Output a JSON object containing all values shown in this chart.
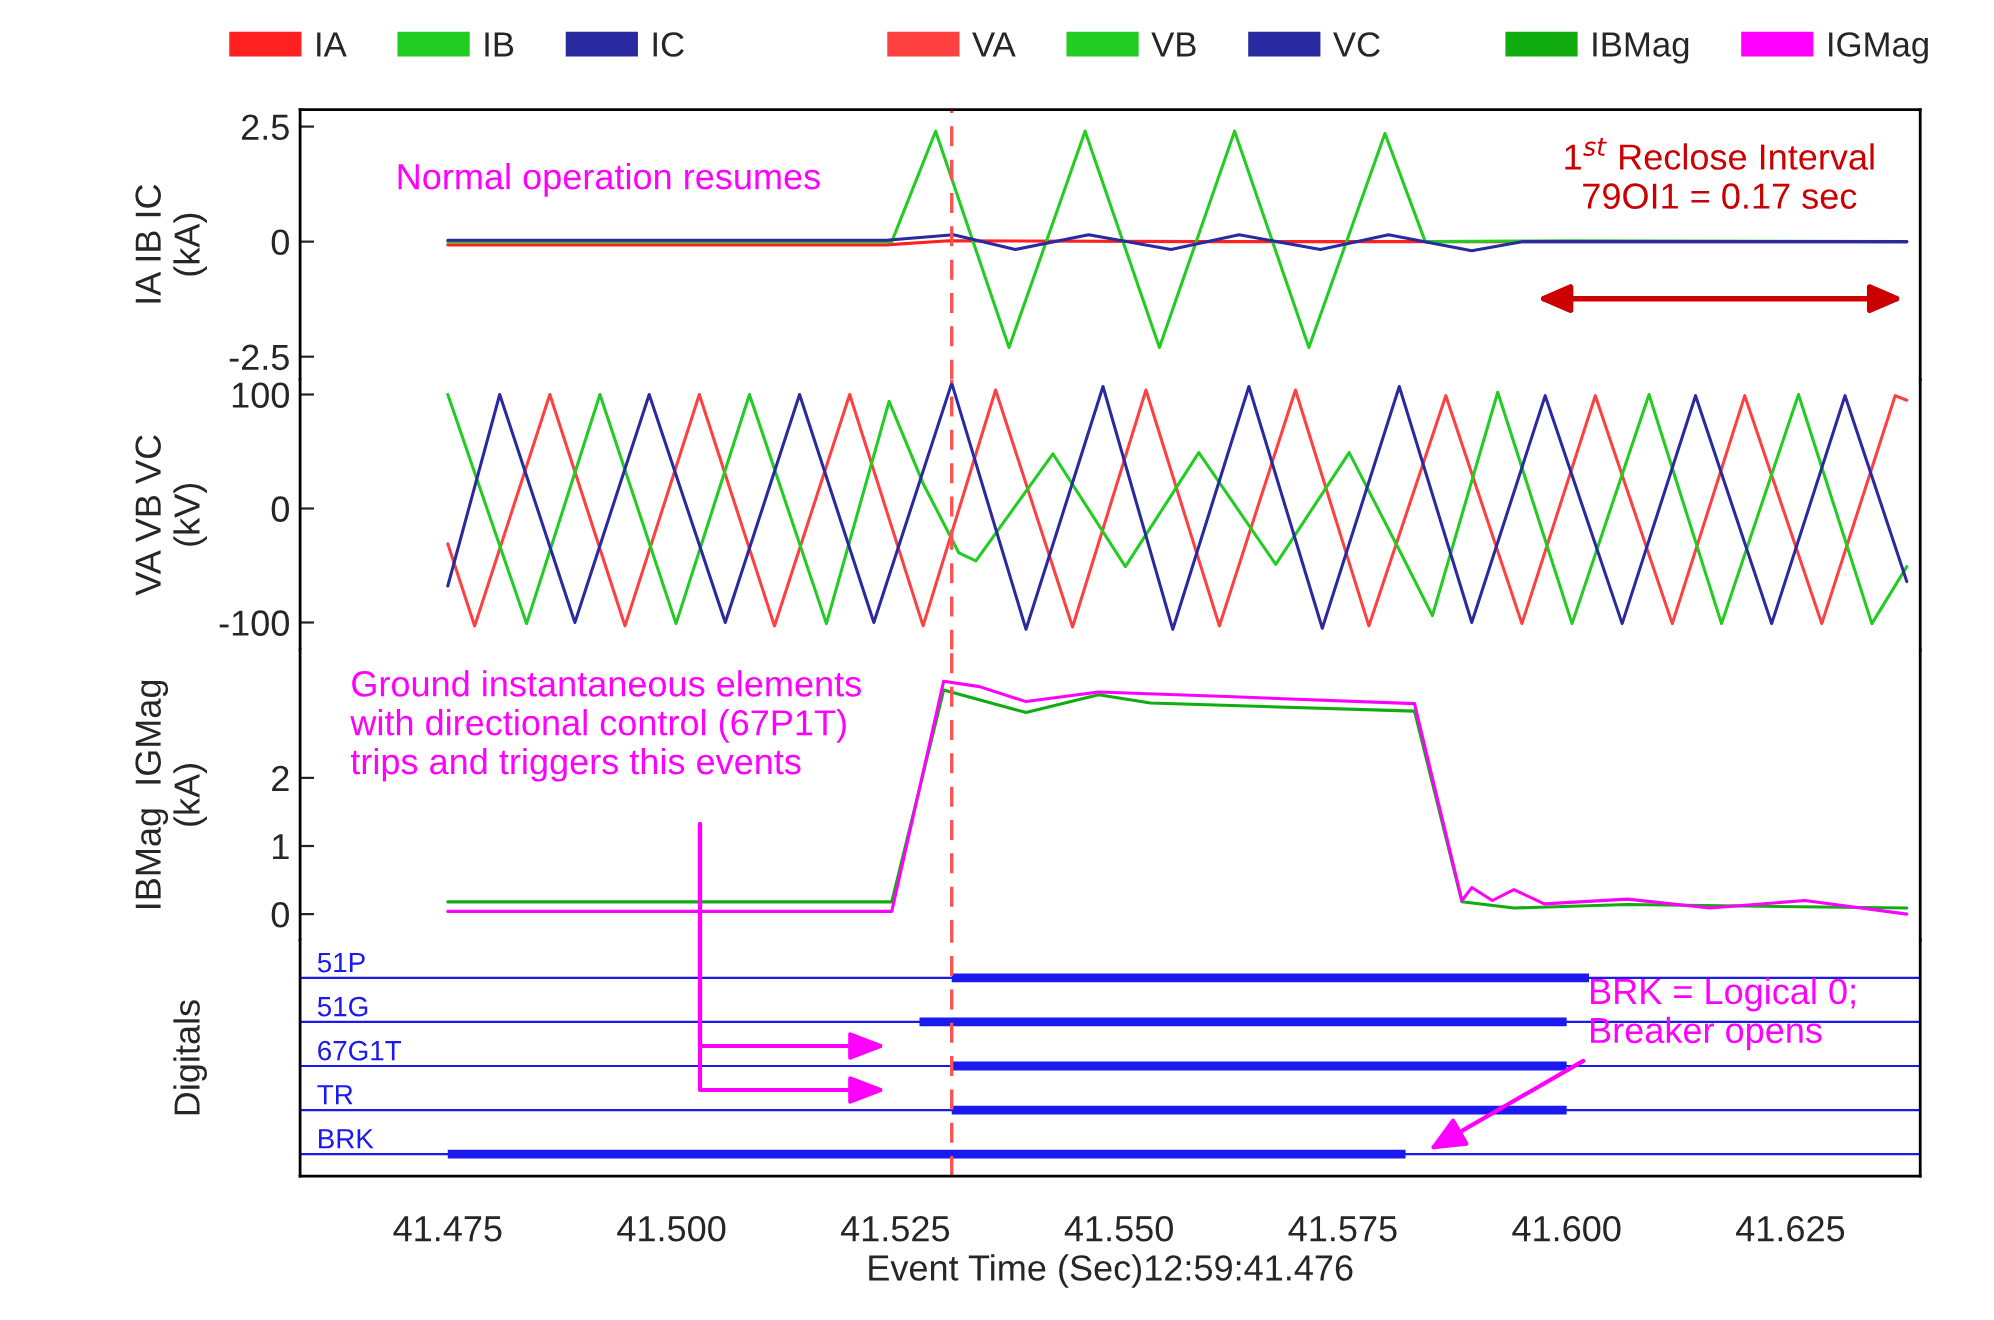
{
  "chart_data": [
    {
      "type": "line",
      "ylabel": "IA IB IC\n(kA)",
      "legend": "top",
      "tick_labels": "y",
      "xlim": [
        41.4585,
        41.6395
      ],
      "ylim": [
        -3.0,
        2.87
      ],
      "yticks": [
        2.5,
        0,
        -2.5
      ],
      "series": [
        {
          "name": "IA",
          "color": "#ff2020",
          "x": [
            41.475,
            41.524,
            41.531,
            41.56,
            41.638
          ],
          "values": [
            -0.07,
            -0.07,
            0.02,
            0.0,
            0.0
          ]
        },
        {
          "name": "IB",
          "color": "#22cc22",
          "x": [
            41.475,
            41.5246,
            41.5295,
            41.5377,
            41.5462,
            41.5545,
            41.5629,
            41.5712,
            41.5797,
            41.5842,
            41.6,
            41.638
          ],
          "values": [
            0.0,
            0.0,
            2.4,
            -2.3,
            2.4,
            -2.3,
            2.4,
            -2.3,
            2.35,
            0.0,
            0.02,
            0.0
          ]
        },
        {
          "name": "IC",
          "color": "#2a2aa0",
          "x": [
            41.475,
            41.524,
            41.5315,
            41.5384,
            41.5466,
            41.5558,
            41.5634,
            41.5725,
            41.5801,
            41.5894,
            41.595,
            41.638
          ],
          "values": [
            0.03,
            0.03,
            0.15,
            -0.17,
            0.15,
            -0.17,
            0.15,
            -0.17,
            0.15,
            -0.2,
            0.0,
            0.0
          ]
        }
      ],
      "ref_lines": [
        {
          "axis": "x",
          "value": 41.5313,
          "color": "#ff5050",
          "line_style": "dashed"
        }
      ],
      "annotations": [
        "Normal operation resumes",
        "1$^{st}$ Reclose Interval\n79OI1 = 0.17 sec"
      ]
    },
    {
      "type": "line",
      "ylabel": "VA VB VC\n(kV)",
      "legend": "top",
      "tick_labels": "y",
      "xlim": [
        41.4585,
        41.6395
      ],
      "ylim": [
        -124,
        113
      ],
      "yticks": [
        100,
        0,
        -100
      ],
      "series": [
        {
          "name": "VA",
          "color": "#ff4040",
          "x": [
            41.475,
            41.478,
            41.4864,
            41.4948,
            41.5031,
            41.5115,
            41.5199,
            41.5281,
            41.5362,
            41.5448,
            41.553,
            41.5612,
            41.5697,
            41.5779,
            41.5865,
            41.595,
            41.6032,
            41.6118,
            41.6199,
            41.6285,
            41.6367,
            41.638
          ],
          "values": [
            -31,
            -103,
            100,
            -103,
            100,
            -103,
            100,
            -103,
            104,
            -104,
            104,
            -103,
            104,
            -103,
            99,
            -101,
            99,
            -101,
            99,
            -101,
            99,
            95
          ]
        },
        {
          "name": "VB",
          "color": "#22cc22",
          "x": [
            41.475,
            41.4838,
            41.492,
            41.5005,
            41.5087,
            41.5173,
            41.5243,
            41.5281,
            41.5321,
            41.534,
            41.5426,
            41.5507,
            41.5589,
            41.5675,
            41.5757,
            41.5816,
            41.585,
            41.5923,
            41.6006,
            41.6092,
            41.6173,
            41.6259,
            41.6341,
            41.638
          ],
          "values": [
            100,
            -101,
            100,
            -101,
            100,
            -101,
            94,
            22,
            -39,
            -46,
            48,
            -51,
            49,
            -49,
            49,
            -41,
            -94,
            102,
            -101,
            100,
            -101,
            100,
            -101,
            -51
          ]
        },
        {
          "name": "VC",
          "color": "#2a2aa0",
          "x": [
            41.475,
            41.4808,
            41.4892,
            41.4975,
            41.506,
            41.5143,
            41.5226,
            41.5313,
            41.5396,
            41.5482,
            41.556,
            41.5645,
            41.5727,
            41.5813,
            41.5894,
            41.5976,
            41.6062,
            41.6144,
            41.6229,
            41.6311,
            41.638
          ],
          "values": [
            -68,
            100,
            -100,
            100,
            -100,
            100,
            -100,
            110,
            -106,
            107,
            -106,
            107,
            -105,
            107,
            -100,
            99,
            -101,
            99,
            -101,
            99,
            -64
          ]
        }
      ],
      "ref_lines": [
        {
          "axis": "x",
          "value": 41.5313,
          "color": "#ff5050",
          "line_style": "dashed"
        }
      ]
    },
    {
      "type": "line",
      "ylabel": "IBMag  IGMag\n(kA)",
      "legend": "top",
      "tick_labels": "y",
      "xlim": [
        41.4585,
        41.6395
      ],
      "ylim": [
        -0.38,
        3.88
      ],
      "yticks": [
        2,
        1,
        0
      ],
      "series": [
        {
          "name": "IBMag",
          "color": "#10ac10",
          "x": [
            41.475,
            41.5246,
            41.5304,
            41.5396,
            41.5477,
            41.5535,
            41.583,
            41.5883,
            41.5941,
            41.6068,
            41.638
          ],
          "values": [
            0.18,
            0.18,
            3.29,
            2.96,
            3.22,
            3.1,
            2.98,
            0.18,
            0.09,
            0.14,
            0.09
          ]
        },
        {
          "name": "IGMag",
          "color": "#ff00ff",
          "x": [
            41.475,
            41.5246,
            41.5304,
            41.5344,
            41.5396,
            41.5477,
            41.5628,
            41.583,
            41.5883,
            41.5894,
            41.5917,
            41.5941,
            41.5975,
            41.6068,
            41.616,
            41.6266,
            41.638
          ],
          "values": [
            0.04,
            0.04,
            3.42,
            3.34,
            3.12,
            3.26,
            3.19,
            3.09,
            0.2,
            0.39,
            0.2,
            0.36,
            0.15,
            0.22,
            0.09,
            0.2,
            0.0
          ]
        }
      ],
      "ref_lines": [
        {
          "axis": "x",
          "value": 41.5313,
          "color": "#ff5050",
          "line_style": "dashed"
        }
      ],
      "annotations": [
        "Ground instantaneous elements\nwith directional control (67P1T)\ntrips and triggers this events"
      ]
    },
    {
      "type": "bar",
      "orientation": "horizontal",
      "ylabel": "Digitals",
      "xlabel": "Event Time (Sec)12:59:41.476",
      "grid": "y",
      "xlim": [
        41.4585,
        41.6395
      ],
      "xticks": [
        41.475,
        {
          "value": 41.5,
          "label": "41.500"
        },
        41.525,
        {
          "value": 41.55,
          "label": "41.550"
        },
        41.575,
        {
          "value": 41.6,
          "label": "41.600"
        },
        41.625
      ],
      "categories": [
        "51P",
        "51G",
        "67G1T",
        "TR",
        "BRK"
      ],
      "series": [
        {
          "color": "#1a1aee",
          "base": [
            41.5313,
            41.5277,
            41.5313,
            41.5313,
            41.475
          ],
          "values": [
            0.0712,
            0.0723,
            0.0687,
            0.0687,
            0.107
          ]
        }
      ],
      "ref_lines": [
        {
          "axis": "x",
          "value": 41.5313,
          "color": "#ff5050",
          "line_style": "dashed"
        }
      ],
      "annotations": [
        "BRK = Logical 0;\nBreaker opens"
      ]
    }
  ]
}
